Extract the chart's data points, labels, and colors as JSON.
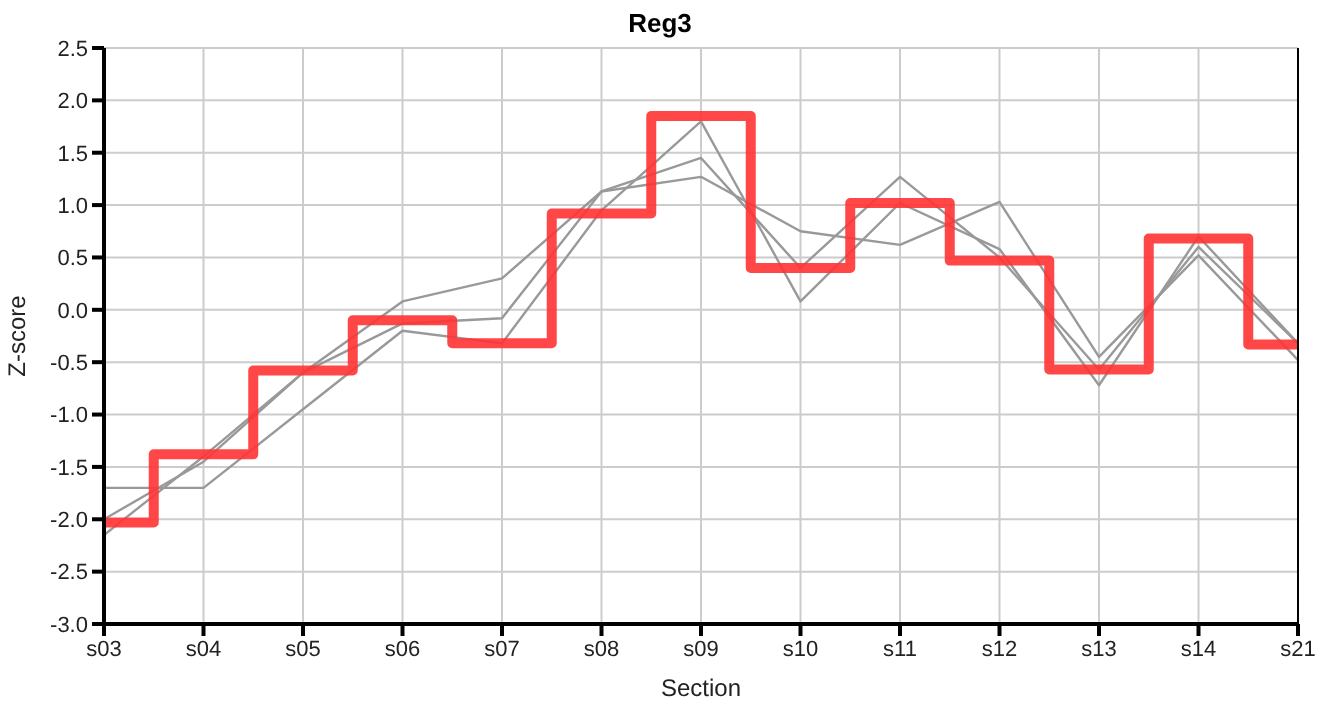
{
  "chart_data": {
    "type": "line",
    "title": "Reg3",
    "xlabel": "Section",
    "ylabel": "Z-score",
    "categories": [
      "s03",
      "s04",
      "s05",
      "s06",
      "s07",
      "s08",
      "s09",
      "s10",
      "s11",
      "s12",
      "s13",
      "s14",
      "s21"
    ],
    "series": [
      {
        "color": "#999999",
        "values": [
          -1.7,
          -1.7,
          -0.95,
          -0.2,
          -0.32,
          0.95,
          1.8,
          0.08,
          1.02,
          0.58,
          -0.72,
          0.7,
          -0.32
        ]
      },
      {
        "color": "#999999",
        "values": [
          -2.0,
          -1.45,
          -0.6,
          0.08,
          0.3,
          1.13,
          1.27,
          0.75,
          0.62,
          1.03,
          -0.45,
          0.52,
          -0.48
        ]
      },
      {
        "color": "#999999",
        "values": [
          -2.15,
          -1.4,
          -0.6,
          -0.13,
          -0.08,
          1.13,
          1.45,
          0.4,
          1.27,
          0.5,
          -0.57,
          0.6,
          -0.32
        ]
      },
      {
        "type": "step",
        "color": "#ff3333",
        "values": [
          -2.03,
          -1.38,
          -0.58,
          -0.1,
          -0.32,
          0.92,
          1.85,
          0.4,
          1.02,
          0.47,
          -0.57,
          0.68,
          -0.33
        ]
      }
    ],
    "ylim": [
      -3,
      2.5
    ],
    "yticks": [
      {
        "value": -3,
        "label": "-3.0"
      },
      {
        "value": -2.5,
        "label": "-2.5"
      },
      {
        "value": -2,
        "label": "-2.0"
      },
      {
        "value": -1.5,
        "label": "-1.5"
      },
      {
        "value": -1,
        "label": "-1.0"
      },
      {
        "value": -0.5,
        "label": "-0.5"
      },
      {
        "value": 0,
        "label": "0.0"
      },
      {
        "value": 0.5,
        "label": "0.5"
      },
      {
        "value": 1,
        "label": "1.0"
      },
      {
        "value": 1.5,
        "label": "1.5"
      },
      {
        "value": 2,
        "label": "2.0"
      },
      {
        "value": 2.5,
        "label": "2.5"
      }
    ],
    "grid": true,
    "legend": false,
    "marker": "none",
    "line_style": "solid"
  }
}
